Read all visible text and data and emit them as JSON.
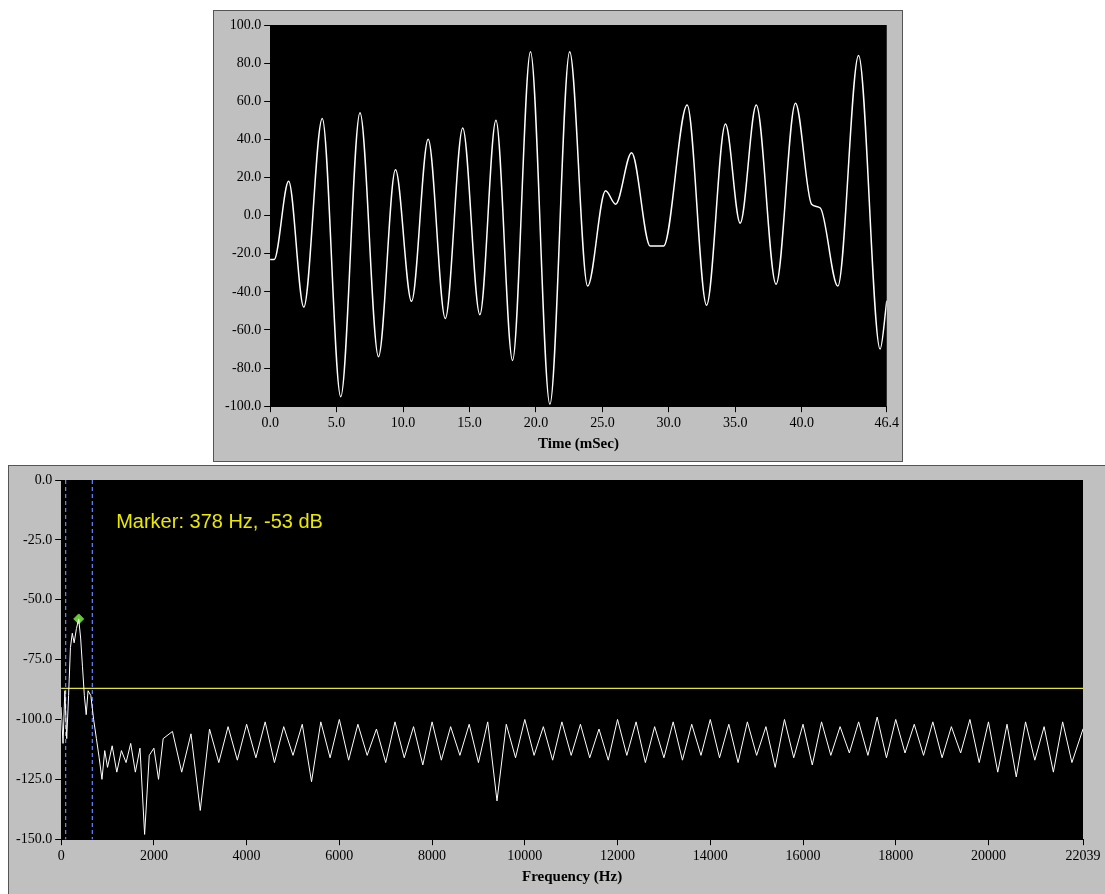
{
  "chart_data": [
    {
      "type": "line",
      "xlabel": "Time (mSec)",
      "xlim": [
        0,
        46.4
      ],
      "ylim": [
        -100,
        100
      ],
      "xticks": [
        {
          "value": 0,
          "label": "0.0"
        },
        {
          "value": 5,
          "label": "5.0"
        },
        {
          "value": 10,
          "label": "10.0"
        },
        {
          "value": 15,
          "label": "15.0"
        },
        {
          "value": 20,
          "label": "20.0"
        },
        {
          "value": 25,
          "label": "25.0"
        },
        {
          "value": 30,
          "label": "30.0"
        },
        {
          "value": 35,
          "label": "35.0"
        },
        {
          "value": 40,
          "label": "40.0"
        },
        46.4
      ],
      "yticks": [
        {
          "value": -100,
          "label": "-100.0"
        },
        {
          "value": -80,
          "label": "-80.0"
        },
        {
          "value": -60,
          "label": "-60.0"
        },
        {
          "value": -40,
          "label": "-40.0"
        },
        {
          "value": -20,
          "label": "-20.0"
        },
        {
          "value": 0,
          "label": "0.0"
        },
        {
          "value": 20,
          "label": "20.0"
        },
        {
          "value": 40,
          "label": "40.0"
        },
        {
          "value": 60,
          "label": "60.0"
        },
        {
          "value": 80,
          "label": "80.0"
        },
        {
          "value": 100,
          "label": "100.0"
        }
      ],
      "legend": false,
      "marker": "none",
      "line_style": "solid",
      "series": [
        {
          "color": "#ffffff",
          "x": [
            0,
            0.3,
            1.39,
            2.53,
            3.92,
            5.31,
            6.76,
            8.15,
            9.43,
            10.64,
            11.89,
            13.18,
            14.49,
            15.78,
            16.99,
            18.24,
            19.59,
            21.05,
            22.54,
            23.89,
            25.24,
            26.0,
            27.2,
            28.6,
            29.6,
            31.38,
            32.84,
            34.26,
            35.37,
            36.58,
            38.07,
            39.53,
            40.74,
            41.4,
            42.72,
            44.28,
            45.9,
            46.4
          ],
          "values": [
            -23,
            -23,
            18,
            -48,
            51,
            -95,
            54,
            -74,
            24,
            -45,
            40,
            -54,
            46,
            -52,
            50,
            -76,
            86,
            -99,
            86,
            -37,
            13,
            6,
            33,
            -16,
            -16,
            58,
            -47,
            48,
            -4,
            58,
            -36,
            59,
            6,
            4,
            -37,
            84,
            -70,
            -45
          ]
        }
      ]
    },
    {
      "type": "line",
      "xlabel": "Frequency (Hz)",
      "xlim": [
        0,
        22039
      ],
      "ylim": [
        -150,
        0
      ],
      "xticks": [
        0,
        2000,
        4000,
        6000,
        8000,
        10000,
        12000,
        14000,
        16000,
        18000,
        20000,
        22039
      ],
      "yticks": [
        {
          "value": -150,
          "label": "-150.0"
        },
        {
          "value": -125,
          "label": "-125.0"
        },
        {
          "value": -100,
          "label": "-100.0"
        },
        {
          "value": -75,
          "label": "-75.0"
        },
        {
          "value": -50,
          "label": "-50.0"
        },
        {
          "value": -25,
          "label": "-25.0"
        },
        {
          "value": 0,
          "label": "0.0"
        }
      ],
      "legend": false,
      "marker": "none",
      "line_style": "solid",
      "annotations": [
        "Marker: 378 Hz, -53 dB"
      ],
      "ref_lines": [
        {
          "axis": "y",
          "value": -87,
          "color": "#e0e040",
          "line_style": "solid"
        },
        {
          "axis": "x",
          "value": 97,
          "color": "#6688ff",
          "line_style": "dashed"
        },
        {
          "axis": "x",
          "value": 672,
          "color": "#6688ff",
          "line_style": "dashed"
        }
      ],
      "series": [
        {
          "color": "#ffffff",
          "x": [
            0,
            40,
            80,
            120,
            160,
            200,
            240,
            280,
            330,
            378,
            420,
            460,
            500,
            540,
            580,
            640,
            700,
            760,
            820,
            880,
            940,
            1000,
            1100,
            1200,
            1300,
            1400,
            1500,
            1600,
            1700,
            1800,
            1900,
            2000,
            2100,
            2200,
            2400,
            2600,
            2800,
            3000,
            3200,
            3400,
            3600,
            3800,
            4000,
            4200,
            4400,
            4600,
            4800,
            5000,
            5200,
            5400,
            5600,
            5800,
            6000,
            6200,
            6400,
            6600,
            6800,
            7000,
            7200,
            7400,
            7600,
            7800,
            8000,
            8200,
            8400,
            8600,
            8800,
            9000,
            9200,
            9400,
            9600,
            9800,
            10000,
            10200,
            10400,
            10600,
            10800,
            11000,
            11200,
            11400,
            11600,
            11800,
            12000,
            12200,
            12400,
            12600,
            12800,
            13000,
            13200,
            13400,
            13600,
            13800,
            14000,
            14200,
            14400,
            14600,
            14800,
            15000,
            15200,
            15400,
            15600,
            15800,
            16000,
            16200,
            16400,
            16600,
            16800,
            17000,
            17200,
            17400,
            17600,
            17800,
            18000,
            18200,
            18400,
            18600,
            18800,
            19000,
            19200,
            19400,
            19600,
            19800,
            20000,
            20200,
            20400,
            20600,
            20800,
            21000,
            21200,
            21400,
            21600,
            21800,
            22039
          ],
          "values": [
            -95,
            -110,
            -88,
            -108,
            -90,
            -70,
            -64,
            -68,
            -62,
            -58,
            -66,
            -78,
            -90,
            -98,
            -88,
            -90,
            -100,
            -108,
            -116,
            -125,
            -113,
            -120,
            -111,
            -122,
            -113,
            -118,
            -110,
            -122,
            -112,
            -148,
            -115,
            -112,
            -125,
            -108,
            -105,
            -122,
            -106,
            -138,
            -104,
            -118,
            -103,
            -117,
            -102,
            -116,
            -101,
            -118,
            -103,
            -115,
            -102,
            -126,
            -101,
            -116,
            -100,
            -117,
            -102,
            -115,
            -104,
            -118,
            -101,
            -116,
            -103,
            -119,
            -101,
            -117,
            -103,
            -115,
            -102,
            -118,
            -101,
            -134,
            -102,
            -116,
            -100,
            -115,
            -103,
            -117,
            -101,
            -115,
            -102,
            -116,
            -104,
            -117,
            -100,
            -115,
            -101,
            -118,
            -103,
            -116,
            -101,
            -117,
            -102,
            -115,
            -100,
            -116,
            -102,
            -118,
            -101,
            -115,
            -103,
            -120,
            -100,
            -116,
            -102,
            -119,
            -101,
            -115,
            -103,
            -114,
            -101,
            -115,
            -99,
            -116,
            -100,
            -114,
            -102,
            -115,
            -101,
            -116,
            -103,
            -114,
            -100,
            -118,
            -101,
            -122,
            -102,
            -124,
            -101,
            -117,
            -103,
            -122,
            -101,
            -118,
            -104
          ]
        },
        {
          "type": "scatter",
          "color": "#66cc33",
          "marker": "diamond",
          "x": [
            378
          ],
          "values": [
            -58
          ]
        }
      ]
    }
  ]
}
